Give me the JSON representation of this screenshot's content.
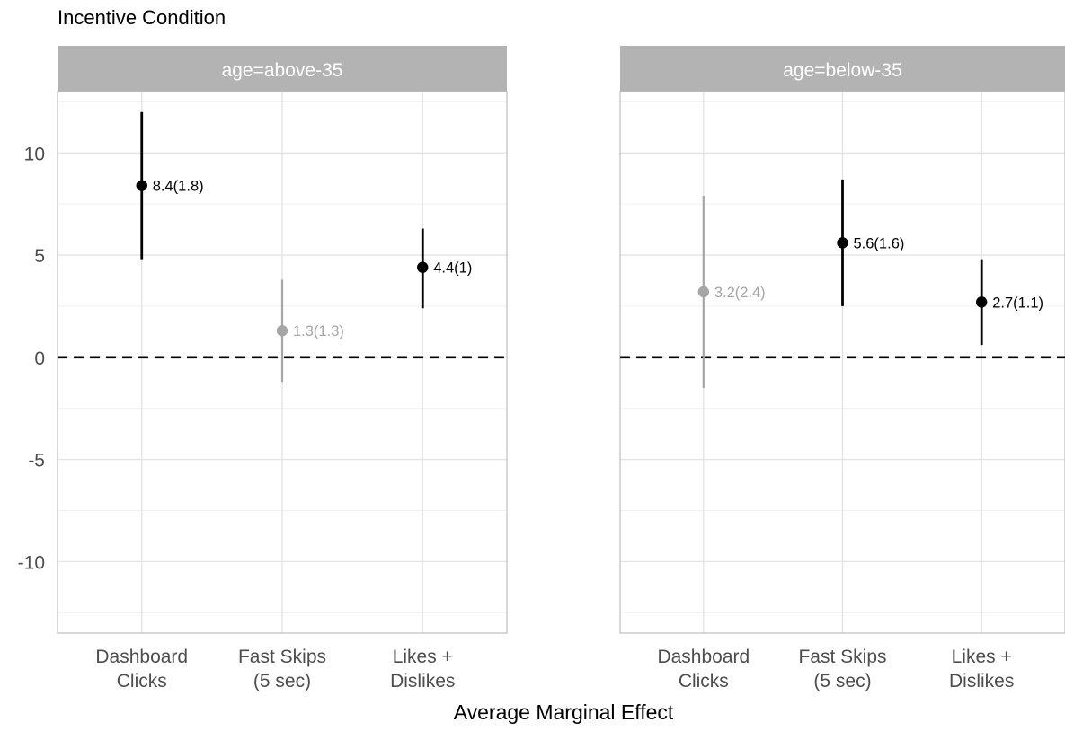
{
  "chart_data": {
    "type": "scatter",
    "title": "Incentive Condition",
    "xlabel": "Average Marginal Effect",
    "ylabel": "",
    "ylim": [
      -13.5,
      13
    ],
    "yticks": [
      10,
      5,
      0,
      -5,
      -10
    ],
    "ytick_labels": [
      "10",
      "5",
      "0",
      "-5",
      "-10"
    ],
    "reference_line": 0,
    "categories": [
      "Dashboard\nClicks",
      "Fast Skips\n(5 sec)",
      "Likes +\nDislikes"
    ],
    "colors": {
      "significant": "#000000",
      "not_significant": "#a6a6a6"
    },
    "panels": [
      {
        "strip": "age=above-35",
        "points": [
          {
            "category": "Dashboard\nClicks",
            "estimate": 8.4,
            "lower": 4.8,
            "upper": 12.0,
            "label": "8.4(1.8)",
            "significant": true
          },
          {
            "category": "Fast Skips\n(5 sec)",
            "estimate": 1.3,
            "lower": -1.2,
            "upper": 3.8,
            "label": "1.3(1.3)",
            "significant": false
          },
          {
            "category": "Likes +\nDislikes",
            "estimate": 4.4,
            "lower": 2.4,
            "upper": 6.3,
            "label": "4.4(1)",
            "significant": true
          }
        ]
      },
      {
        "strip": "age=below-35",
        "points": [
          {
            "category": "Dashboard\nClicks",
            "estimate": 3.2,
            "lower": -1.5,
            "upper": 7.9,
            "label": "3.2(2.4)",
            "significant": false
          },
          {
            "category": "Fast Skips\n(5 sec)",
            "estimate": 5.6,
            "lower": 2.5,
            "upper": 8.7,
            "label": "5.6(1.6)",
            "significant": true
          },
          {
            "category": "Likes +\nDislikes",
            "estimate": 2.7,
            "lower": 0.6,
            "upper": 4.8,
            "label": "2.7(1.1)",
            "significant": true
          }
        ]
      }
    ]
  }
}
